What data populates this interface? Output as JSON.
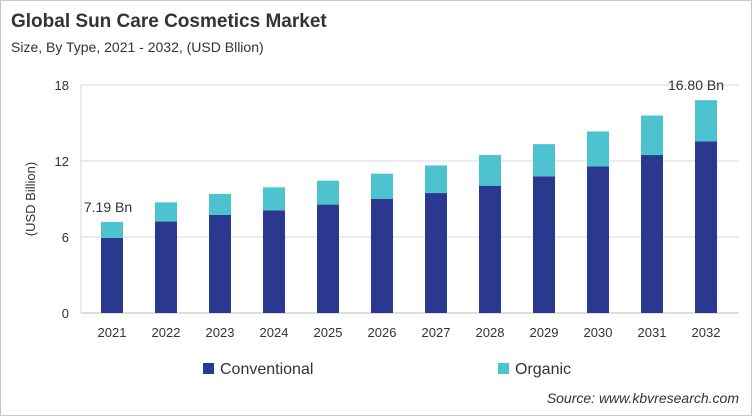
{
  "title": "Global Sun Care Cosmetics Market",
  "subtitle": "Size, By Type, 2021 - 2032, (USD Bllion)",
  "source": "Source: www.kbvresearch.com",
  "chart_data": {
    "type": "bar",
    "stacked": true,
    "categories": [
      "2021",
      "2022",
      "2023",
      "2024",
      "2025",
      "2026",
      "2027",
      "2028",
      "2029",
      "2030",
      "2031",
      "2032"
    ],
    "series": [
      {
        "name": "Conventional",
        "color": "#2b388f",
        "values": [
          5.93,
          7.22,
          7.74,
          8.11,
          8.56,
          9.0,
          9.47,
          10.05,
          10.79,
          11.57,
          12.47,
          13.54
        ]
      },
      {
        "name": "Organic",
        "color": "#4dc3cf",
        "values": [
          1.26,
          1.52,
          1.66,
          1.81,
          1.89,
          2.0,
          2.18,
          2.42,
          2.54,
          2.76,
          3.12,
          3.26
        ]
      }
    ],
    "annotations": [
      {
        "category": "2021",
        "text": "7.19 Bn"
      },
      {
        "category": "2032",
        "text": "16.80 Bn"
      }
    ],
    "ylabel": "(USD Billion)",
    "xlabel": "",
    "ylim": [
      0,
      18
    ],
    "yticks": [
      0,
      6,
      12,
      18
    ],
    "grid": true,
    "legend": "bottom"
  }
}
